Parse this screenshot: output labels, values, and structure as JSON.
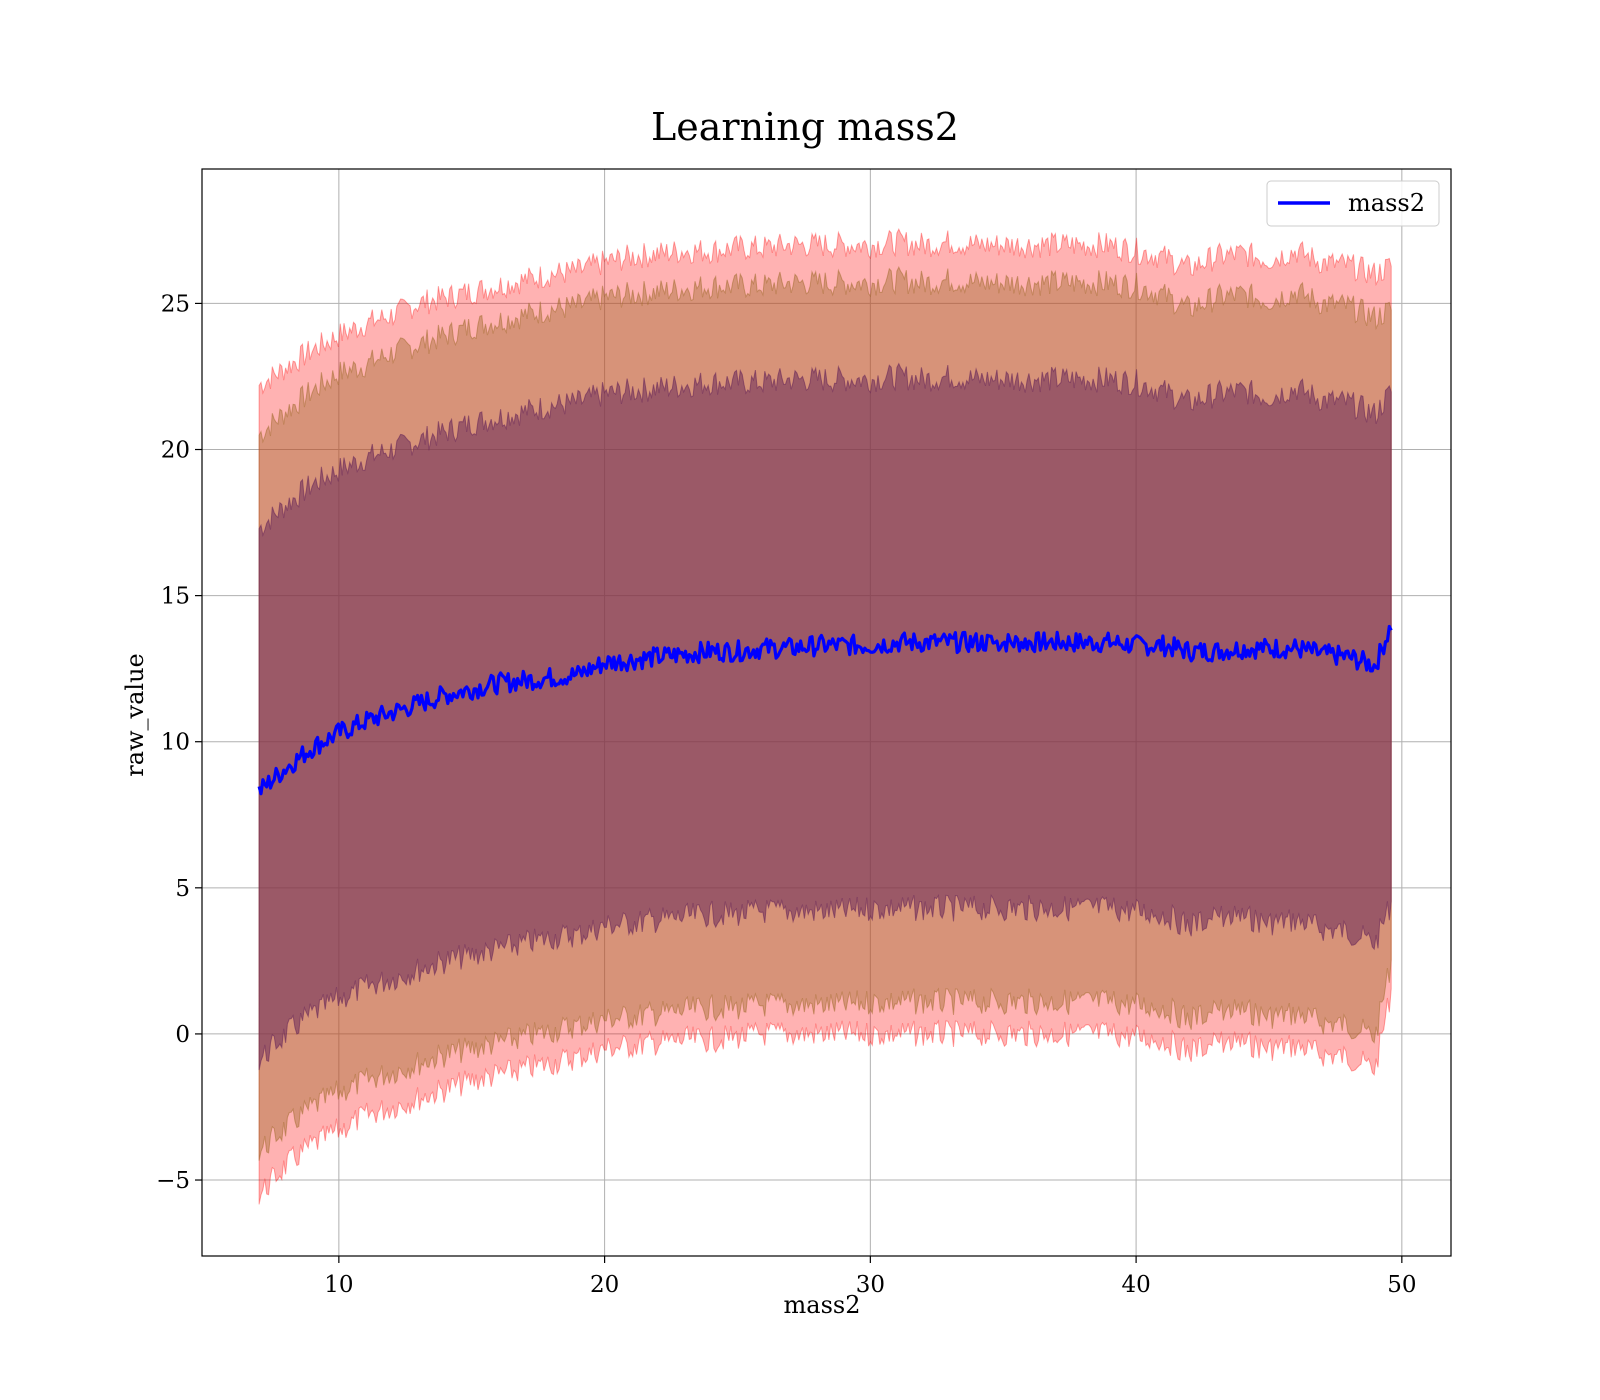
{
  "chart_data": {
    "type": "area",
    "title": "Learning mass2",
    "xlabel": "mass2",
    "ylabel": "raw_value",
    "xlim": [
      4.85,
      51.85
    ],
    "ylim": [
      -7.6,
      29.6
    ],
    "xticks": [
      10,
      20,
      30,
      40,
      50
    ],
    "yticks": [
      -5,
      0,
      5,
      10,
      15,
      20,
      25
    ],
    "ytick_labels": [
      "−5",
      "0",
      "5",
      "10",
      "15",
      "20",
      "25"
    ],
    "grid": true,
    "legend": {
      "position": "top-right",
      "entries": [
        "mass2"
      ]
    },
    "colors": {
      "mean_line": "#0000ff",
      "band_outer": "#ff0000",
      "band_middle": "#a06a2a",
      "band_inner": "#6a2a5a",
      "grid": "#b0b0b0"
    },
    "x": [
      7,
      8,
      9,
      10,
      11,
      12,
      13,
      14,
      15,
      16,
      17,
      18,
      19,
      20,
      21,
      22,
      23,
      24,
      25,
      26,
      27,
      28,
      29,
      30,
      31,
      32,
      33,
      34,
      35,
      36,
      37,
      38,
      39,
      40,
      41,
      42,
      43,
      44,
      45,
      46,
      47,
      48,
      49,
      49.6
    ],
    "series": [
      {
        "name": "mass2",
        "role": "mean",
        "values": [
          8.3,
          9.1,
          9.8,
          10.3,
          10.7,
          11.0,
          11.3,
          11.6,
          11.8,
          12.0,
          12.1,
          12.2,
          12.3,
          12.7,
          12.8,
          12.9,
          13.0,
          13.1,
          13.1,
          13.2,
          13.2,
          13.3,
          13.3,
          13.3,
          13.4,
          13.4,
          13.4,
          13.4,
          13.4,
          13.4,
          13.4,
          13.4,
          13.4,
          13.3,
          13.3,
          13.1,
          13.1,
          13.2,
          13.2,
          13.2,
          13.0,
          12.9,
          12.6,
          14.0
        ]
      }
    ],
    "bands": [
      {
        "role": "outer",
        "upper": [
          22.2,
          22.8,
          23.4,
          23.9,
          24.3,
          24.6,
          25.0,
          25.2,
          25.4,
          25.6,
          25.8,
          26.0,
          26.1,
          26.4,
          26.6,
          26.7,
          26.8,
          26.8,
          26.9,
          26.9,
          27.0,
          27.0,
          27.0,
          27.0,
          27.1,
          27.0,
          27.1,
          27.0,
          27.0,
          27.0,
          27.0,
          27.0,
          27.0,
          26.8,
          26.6,
          26.2,
          26.6,
          26.7,
          26.5,
          26.8,
          26.4,
          26.3,
          26.0,
          26.3
        ],
        "lower": [
          -5.5,
          -4.5,
          -3.8,
          -3.3,
          -2.8,
          -2.5,
          -2.2,
          -1.9,
          -1.6,
          -1.4,
          -1.2,
          -1.0,
          -0.8,
          -0.5,
          -0.4,
          -0.3,
          -0.2,
          -0.2,
          -0.1,
          0.0,
          0.0,
          0.0,
          0.0,
          0.0,
          0.0,
          0.0,
          0.0,
          0.0,
          0.0,
          0.0,
          0.0,
          0.0,
          0.0,
          -0.1,
          -0.2,
          -0.6,
          -0.3,
          -0.3,
          -0.5,
          -0.4,
          -0.7,
          -0.8,
          -1.2,
          1.5
        ]
      },
      {
        "role": "middle",
        "upper": [
          20.5,
          21.3,
          22.0,
          22.6,
          22.9,
          23.3,
          23.6,
          23.9,
          24.2,
          24.4,
          24.6,
          24.8,
          24.9,
          25.2,
          25.3,
          25.4,
          25.5,
          25.6,
          25.6,
          25.6,
          25.7,
          25.7,
          25.7,
          25.7,
          25.8,
          25.7,
          25.8,
          25.7,
          25.7,
          25.7,
          25.7,
          25.7,
          25.7,
          25.6,
          25.3,
          24.8,
          25.2,
          25.3,
          25.1,
          25.4,
          25.0,
          24.9,
          24.5,
          24.8
        ],
        "lower": [
          -4.0,
          -3.2,
          -2.5,
          -2.0,
          -1.6,
          -1.3,
          -1.0,
          -0.7,
          -0.5,
          -0.3,
          -0.1,
          0.1,
          0.3,
          0.5,
          0.6,
          0.7,
          0.8,
          0.9,
          0.9,
          1.0,
          1.0,
          1.0,
          1.0,
          1.1,
          1.1,
          1.1,
          1.1,
          1.1,
          1.1,
          1.1,
          1.1,
          1.1,
          1.1,
          1.0,
          0.9,
          0.5,
          0.8,
          0.8,
          0.6,
          0.7,
          0.4,
          0.3,
          -0.1,
          2.5
        ]
      },
      {
        "role": "inner",
        "upper": [
          17.3,
          18.1,
          18.8,
          19.3,
          19.7,
          20.0,
          20.3,
          20.6,
          20.9,
          21.1,
          21.3,
          21.5,
          21.6,
          21.9,
          22.0,
          22.1,
          22.2,
          22.3,
          22.3,
          22.3,
          22.4,
          22.4,
          22.4,
          22.4,
          22.5,
          22.4,
          22.5,
          22.4,
          22.4,
          22.4,
          22.4,
          22.4,
          22.4,
          22.3,
          22.0,
          21.6,
          21.9,
          22.0,
          21.8,
          22.1,
          21.7,
          21.6,
          21.2,
          22.0
        ],
        "lower": [
          -0.9,
          0.0,
          0.7,
          1.2,
          1.6,
          1.9,
          2.2,
          2.5,
          2.7,
          2.9,
          3.1,
          3.3,
          3.4,
          3.7,
          3.8,
          3.9,
          4.0,
          4.1,
          4.1,
          4.2,
          4.2,
          4.2,
          4.2,
          4.3,
          4.3,
          4.3,
          4.3,
          4.3,
          4.3,
          4.3,
          4.3,
          4.3,
          4.3,
          4.2,
          4.1,
          3.7,
          4.0,
          4.0,
          3.8,
          3.9,
          3.6,
          3.5,
          3.1,
          4.5
        ]
      }
    ]
  }
}
